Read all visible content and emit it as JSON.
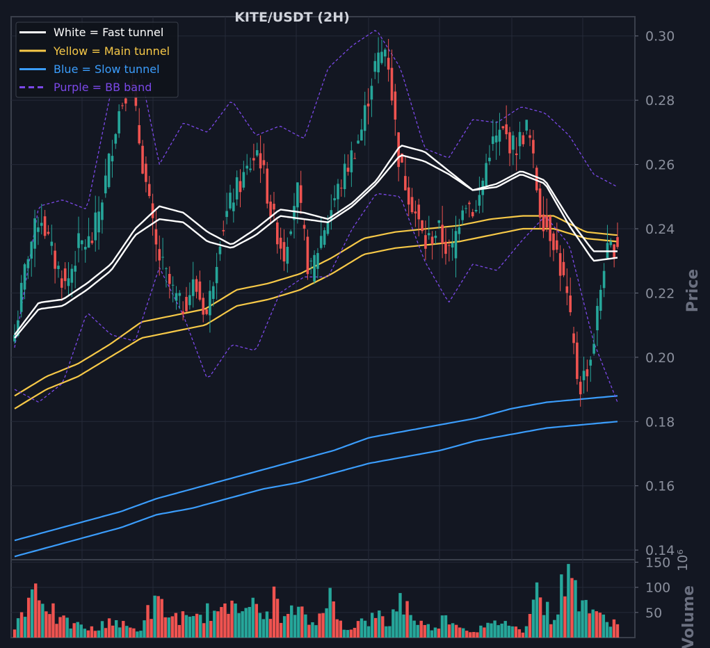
{
  "chart_data": {
    "type": "candlestick",
    "title": "KITE/USDT (2H)",
    "price_axis": {
      "label": "Price",
      "ylim": [
        0.137,
        0.306
      ],
      "ticks": [
        "0.14",
        "0.16",
        "0.18",
        "0.20",
        "0.22",
        "0.24",
        "0.26",
        "0.28",
        "0.30"
      ],
      "tick_values": [
        0.14,
        0.16,
        0.18,
        0.2,
        0.22,
        0.24,
        0.26,
        0.28,
        0.3
      ]
    },
    "volume_axis": {
      "label": "Volume",
      "exponent_label": "10⁶",
      "ylim": [
        0,
        155
      ],
      "ticks": [
        "50",
        "100",
        "150"
      ],
      "tick_values": [
        50,
        100,
        150
      ]
    },
    "grid": true,
    "legend_position": "top-left",
    "legend": [
      {
        "label": "White = Fast tunnel",
        "color": "#ffffff",
        "style": "solid"
      },
      {
        "label": "Yellow = Main tunnel",
        "color": "#f7c948",
        "style": "solid"
      },
      {
        "label": "Blue = Slow tunnel",
        "color": "#3b9dfc",
        "style": "solid"
      },
      {
        "label": "Purple = BB band",
        "color": "#7b48e8",
        "style": "dashed"
      }
    ],
    "colors": {
      "background": "#131722",
      "up": "#26a69a",
      "down": "#ef5350",
      "grid": "#242a38",
      "frame": "#3a3f4b"
    },
    "candles_anchor_close": [
      0.207,
      0.232,
      0.245,
      0.231,
      0.222,
      0.235,
      0.236,
      0.253,
      0.275,
      0.287,
      0.26,
      0.234,
      0.223,
      0.215,
      0.223,
      0.213,
      0.238,
      0.25,
      0.257,
      0.265,
      0.245,
      0.232,
      0.253,
      0.225,
      0.239,
      0.25,
      0.26,
      0.27,
      0.29,
      0.297,
      0.26,
      0.248,
      0.235,
      0.24,
      0.231,
      0.25,
      0.245,
      0.265,
      0.27,
      0.265,
      0.272,
      0.245,
      0.237,
      0.22,
      0.19,
      0.201,
      0.231,
      0.236
    ],
    "fast_tunnel_upper": [
      0.207,
      0.217,
      0.218,
      0.223,
      0.229,
      0.24,
      0.247,
      0.245,
      0.239,
      0.235,
      0.24,
      0.246,
      0.245,
      0.243,
      0.248,
      0.255,
      0.266,
      0.264,
      0.258,
      0.252,
      0.254,
      0.258,
      0.255,
      0.243,
      0.233,
      0.233
    ],
    "fast_tunnel_lower": [
      0.206,
      0.215,
      0.216,
      0.221,
      0.227,
      0.238,
      0.243,
      0.242,
      0.236,
      0.234,
      0.238,
      0.244,
      0.243,
      0.242,
      0.247,
      0.254,
      0.263,
      0.261,
      0.257,
      0.252,
      0.253,
      0.257,
      0.254,
      0.241,
      0.23,
      0.231
    ],
    "main_tunnel_upper": [
      0.188,
      0.194,
      0.198,
      0.204,
      0.211,
      0.213,
      0.215,
      0.221,
      0.223,
      0.226,
      0.231,
      0.237,
      0.239,
      0.24,
      0.241,
      0.243,
      0.244,
      0.244,
      0.239,
      0.238
    ],
    "main_tunnel_lower": [
      0.184,
      0.19,
      0.194,
      0.2,
      0.206,
      0.208,
      0.21,
      0.216,
      0.218,
      0.221,
      0.226,
      0.232,
      0.234,
      0.235,
      0.236,
      0.238,
      0.24,
      0.24,
      0.237,
      0.236
    ],
    "slow_tunnel_upper": [
      0.143,
      0.146,
      0.149,
      0.152,
      0.156,
      0.159,
      0.162,
      0.165,
      0.168,
      0.171,
      0.175,
      0.177,
      0.179,
      0.181,
      0.184,
      0.186,
      0.187,
      0.188
    ],
    "slow_tunnel_lower": [
      0.138,
      0.141,
      0.144,
      0.147,
      0.151,
      0.153,
      0.156,
      0.159,
      0.161,
      0.164,
      0.167,
      0.169,
      0.171,
      0.174,
      0.176,
      0.178,
      0.179,
      0.18
    ],
    "bb_upper": [
      0.203,
      0.247,
      0.249,
      0.246,
      0.283,
      0.297,
      0.26,
      0.273,
      0.27,
      0.28,
      0.269,
      0.272,
      0.268,
      0.29,
      0.297,
      0.302,
      0.29,
      0.265,
      0.262,
      0.274,
      0.273,
      0.278,
      0.276,
      0.269,
      0.257,
      0.253
    ],
    "bb_lower": [
      0.19,
      0.186,
      0.192,
      0.214,
      0.207,
      0.205,
      0.228,
      0.213,
      0.193,
      0.204,
      0.202,
      0.22,
      0.225,
      0.225,
      0.24,
      0.251,
      0.25,
      0.23,
      0.217,
      0.229,
      0.227,
      0.236,
      0.244,
      0.235,
      0.205,
      0.186
    ],
    "volume_anchor": [
      20,
      70,
      110,
      80,
      40,
      30,
      25,
      20,
      15,
      40,
      30,
      20,
      15,
      60,
      70,
      40,
      45,
      30,
      50,
      55,
      45,
      80,
      90,
      60,
      40,
      80,
      35,
      60,
      40,
      25,
      105,
      40,
      20,
      30,
      35,
      45,
      25,
      85,
      55,
      30,
      20,
      35,
      45,
      20,
      15,
      20,
      25,
      40,
      20,
      15,
      115,
      60,
      40,
      135,
      100,
      75,
      40,
      45,
      25
    ]
  }
}
